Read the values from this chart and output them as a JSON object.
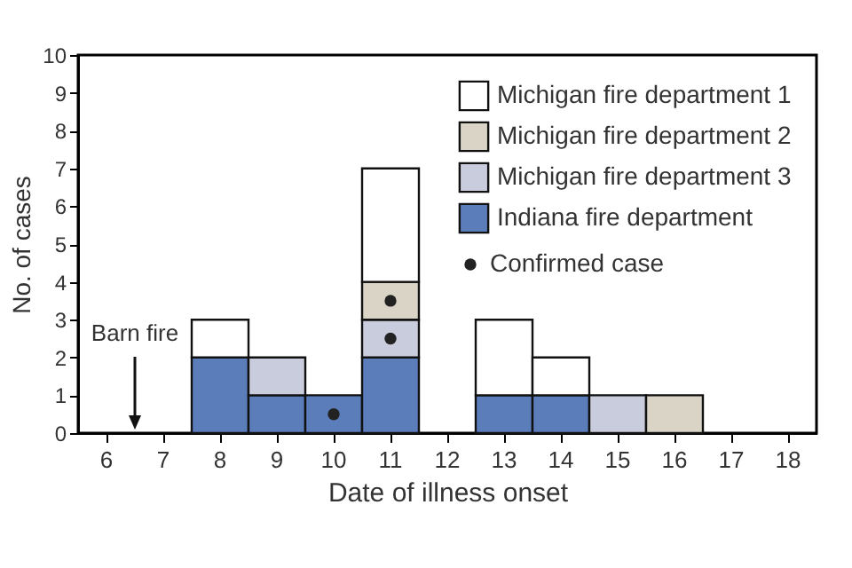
{
  "chart_data": {
    "type": "bar",
    "stacked": true,
    "xlabel": "Date of illness onset",
    "ylabel": "No. of cases",
    "categories": [
      "6",
      "7",
      "8",
      "9",
      "10",
      "11",
      "12",
      "13",
      "14",
      "15",
      "16",
      "17",
      "18"
    ],
    "series": [
      {
        "name": "Indiana fire department",
        "color": "#5b7db9",
        "values": [
          null,
          null,
          2,
          1,
          1,
          2,
          null,
          1,
          1,
          null,
          null,
          null,
          null
        ]
      },
      {
        "name": "Michigan fire department 3",
        "color": "#c9ccdd",
        "values": [
          null,
          null,
          null,
          1,
          null,
          1,
          null,
          null,
          null,
          1,
          null,
          null,
          null
        ]
      },
      {
        "name": "Michigan fire department 2",
        "color": "#d9d4c6",
        "values": [
          null,
          null,
          null,
          null,
          null,
          1,
          null,
          null,
          null,
          null,
          1,
          null,
          null
        ]
      },
      {
        "name": "Michigan fire department 1",
        "color": "#ffffff",
        "values": [
          null,
          null,
          1,
          null,
          null,
          3,
          null,
          2,
          1,
          null,
          null,
          null,
          null
        ]
      },
      {
        "name": "Confirmed case",
        "type": "scatter",
        "color": "#222222",
        "x": [
          "10",
          "11",
          "11"
        ],
        "values": [
          0.5,
          2.5,
          3.5
        ]
      }
    ],
    "ylim": [
      0,
      10
    ],
    "yticks": [
      0,
      1,
      2,
      3,
      4,
      5,
      6,
      7,
      8,
      9,
      10
    ],
    "grid": false,
    "legend": "top right",
    "marker": "circle",
    "annotations": [
      "Barn fire"
    ]
  }
}
